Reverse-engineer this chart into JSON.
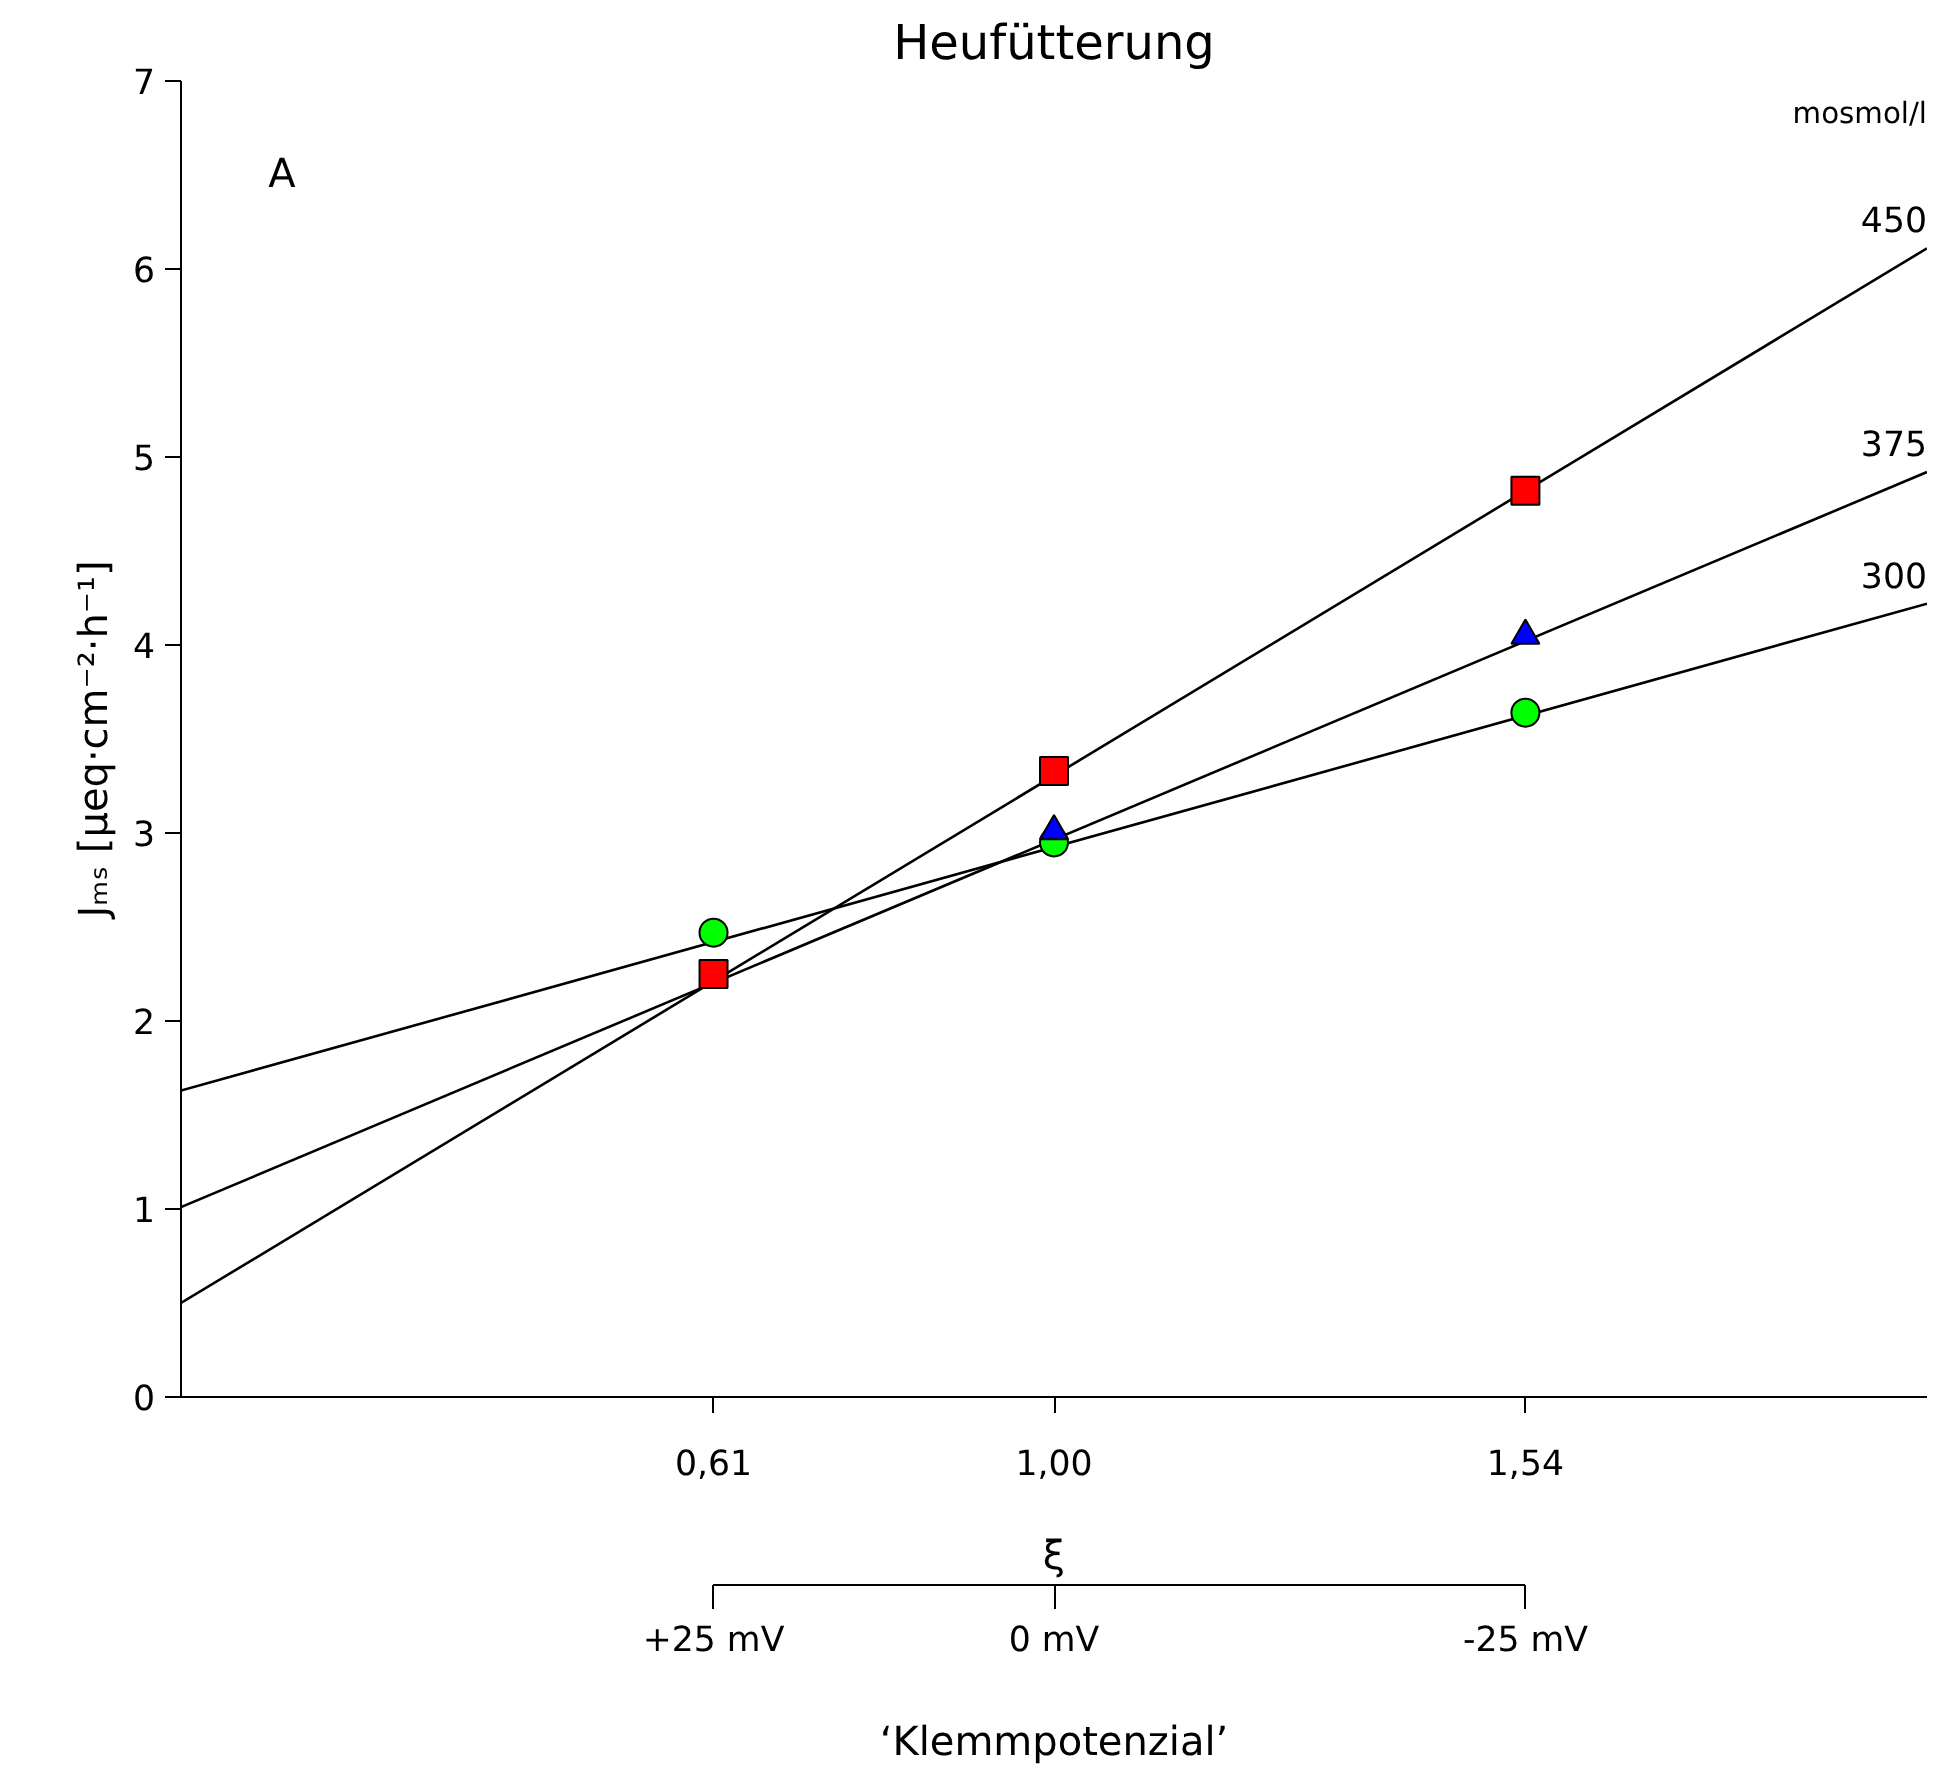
{
  "chart_data": {
    "type": "scatter",
    "title": "Heufütterung",
    "xlabel": "ξ",
    "ylabel": "Jₘₛ [µeq·cm⁻²·h⁻¹]",
    "x2label": "‘Klemmpotenzial’",
    "xlim": [
      0,
      2
    ],
    "ylim": [
      0,
      7
    ],
    "xticks": [
      {
        "value": 0.61,
        "label": "0,61"
      },
      {
        "value": 1.0,
        "label": "1,00"
      },
      {
        "value": 1.54,
        "label": "1,54"
      }
    ],
    "yticks": [
      0,
      1,
      2,
      3,
      4,
      5,
      6,
      7
    ],
    "grid": false,
    "series": [
      {
        "type": "line",
        "name": "300",
        "x": [
          0,
          2
        ],
        "values": [
          1.63,
          4.22
        ],
        "color": "#000000"
      },
      {
        "type": "line",
        "name": "375",
        "x": [
          0,
          2
        ],
        "values": [
          1.01,
          4.92
        ],
        "color": "#000000"
      },
      {
        "type": "line",
        "name": "450",
        "x": [
          0,
          2
        ],
        "values": [
          0.5,
          6.11
        ],
        "color": "#000000"
      },
      {
        "marker": "circle",
        "x": [
          0.61,
          1.0,
          1.54
        ],
        "values": [
          2.47,
          2.95,
          3.64
        ],
        "color": "#00ff00"
      },
      {
        "marker": "triangle",
        "x": [
          1.0,
          1.54
        ],
        "values": [
          3.01,
          4.05
        ],
        "color": "#0000ff"
      },
      {
        "marker": "square",
        "x": [
          0.61,
          1.0,
          1.54
        ],
        "values": [
          2.25,
          3.33,
          4.82
        ],
        "color": "#ff0000"
      }
    ],
    "annotations": [
      "A",
      "mosmol/l",
      "+25 mV",
      "0 mV",
      "-25 mV"
    ]
  }
}
